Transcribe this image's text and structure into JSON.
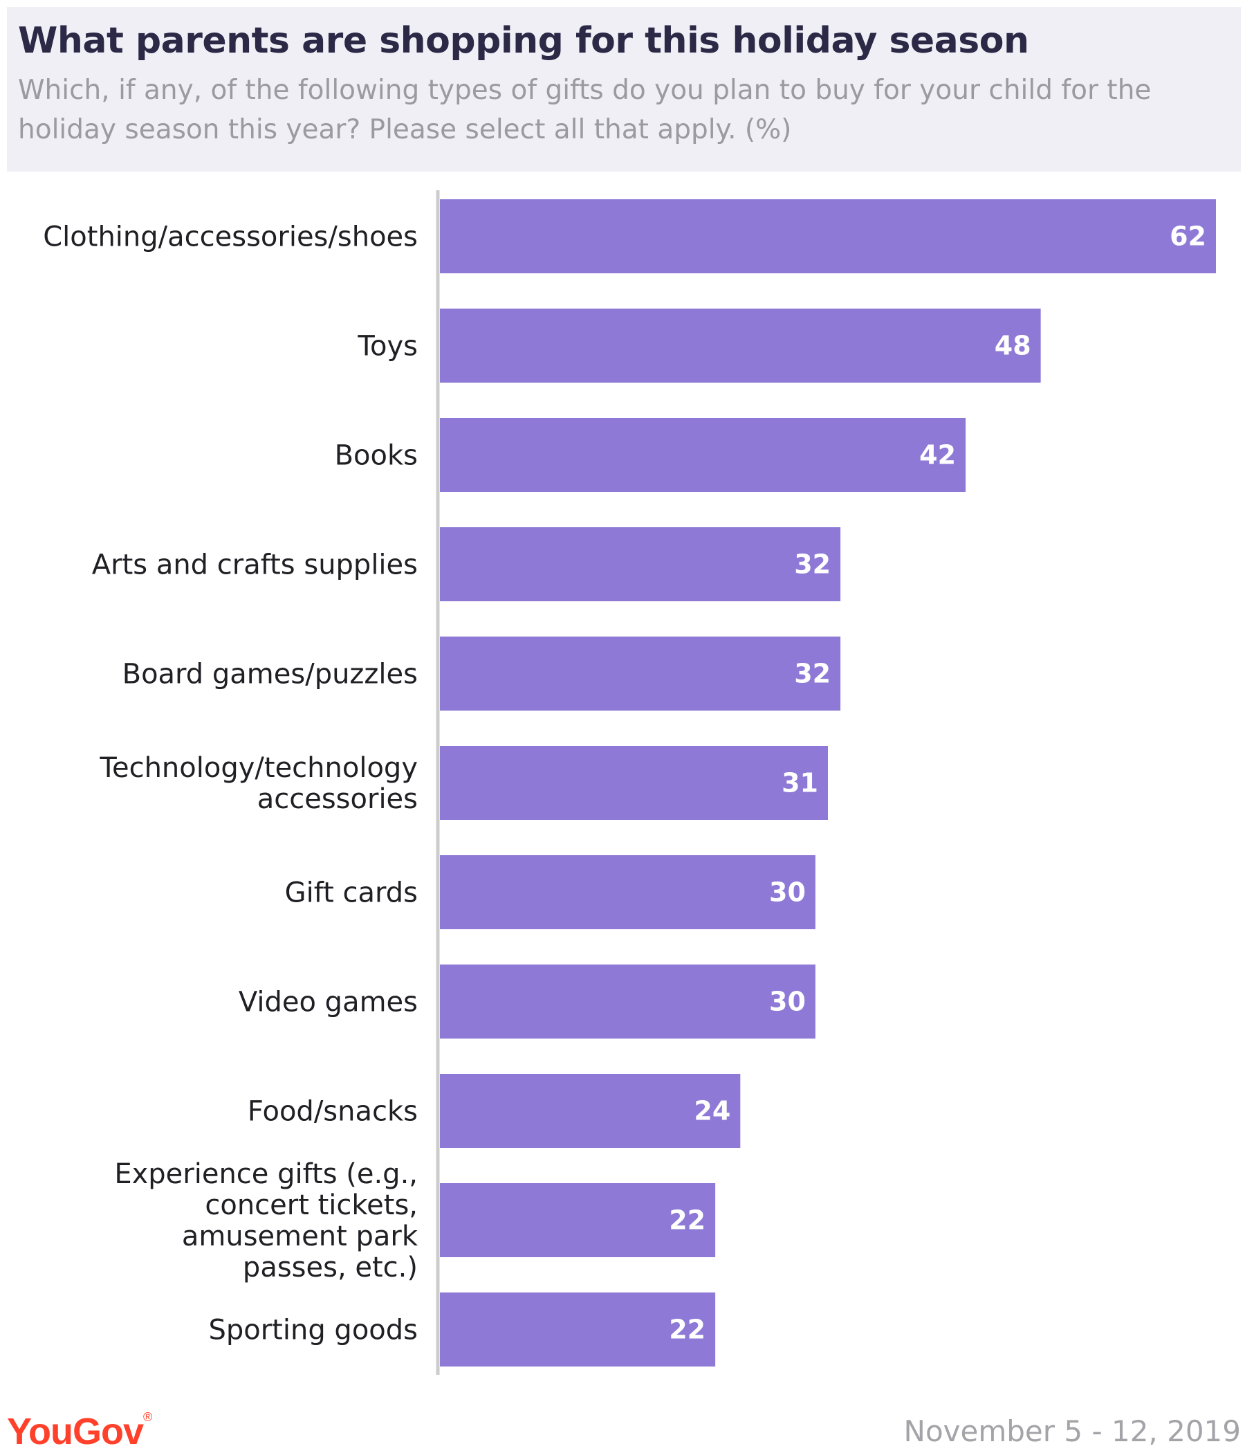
{
  "header": {
    "title": "What parents are shopping for this holiday season",
    "subtitle": "Which, if any, of the following types of gifts do you plan to buy for your child for the holiday season this year? Please select all that apply. (%)"
  },
  "footer": {
    "brand": "YouGov",
    "brand_mark": "®",
    "date": "November 5 - 12, 2019"
  },
  "colors": {
    "bar": "#8e7ad6",
    "axis": "#cccccc",
    "brand": "#ff412c"
  },
  "chart_data": {
    "type": "bar",
    "orientation": "horizontal",
    "categories": [
      [
        "Clothing/accessories/shoes"
      ],
      [
        "Toys"
      ],
      [
        "Books"
      ],
      [
        "Arts and crafts supplies"
      ],
      [
        "Board games/puzzles"
      ],
      [
        "Technology/technology",
        "accessories"
      ],
      [
        "Gift cards"
      ],
      [
        "Video games"
      ],
      [
        "Food/snacks"
      ],
      [
        "Experience gifts (e.g.,",
        "concert tickets,",
        "amusement park",
        "passes, etc.)"
      ],
      [
        "Sporting goods"
      ]
    ],
    "values": [
      62,
      48,
      42,
      32,
      32,
      31,
      30,
      30,
      24,
      22,
      22
    ],
    "xlim": [
      0,
      62
    ],
    "grid": false,
    "legend": "none"
  }
}
